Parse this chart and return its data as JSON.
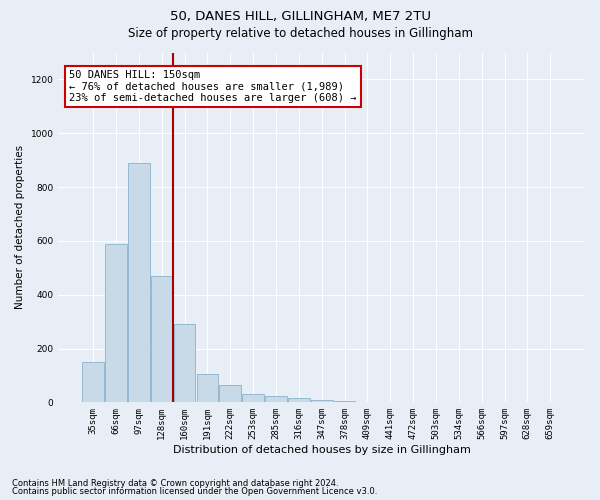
{
  "title1": "50, DANES HILL, GILLINGHAM, ME7 2TU",
  "title2": "Size of property relative to detached houses in Gillingham",
  "xlabel": "Distribution of detached houses by size in Gillingham",
  "ylabel": "Number of detached properties",
  "categories": [
    "35sqm",
    "66sqm",
    "97sqm",
    "128sqm",
    "160sqm",
    "191sqm",
    "222sqm",
    "253sqm",
    "285sqm",
    "316sqm",
    "347sqm",
    "378sqm",
    "409sqm",
    "441sqm",
    "472sqm",
    "503sqm",
    "534sqm",
    "566sqm",
    "597sqm",
    "628sqm",
    "659sqm"
  ],
  "values": [
    150,
    590,
    890,
    470,
    290,
    105,
    65,
    30,
    25,
    15,
    10,
    5,
    0,
    0,
    0,
    0,
    0,
    0,
    0,
    0,
    0
  ],
  "bar_color": "#c8d9e8",
  "bar_edge_color": "#8ab4cc",
  "vline_x": 3.5,
  "vline_color": "#aa0000",
  "annotation_text": "50 DANES HILL: 150sqm\n← 76% of detached houses are smaller (1,989)\n23% of semi-detached houses are larger (608) →",
  "annotation_box_color": "#ffffff",
  "annotation_box_edge_color": "#cc0000",
  "ylim": [
    0,
    1300
  ],
  "yticks": [
    0,
    200,
    400,
    600,
    800,
    1000,
    1200
  ],
  "bg_color": "#e8eef5",
  "plot_bg_color": "#e8eef5",
  "grid_color": "#ffffff",
  "footer1": "Contains HM Land Registry data © Crown copyright and database right 2024.",
  "footer2": "Contains public sector information licensed under the Open Government Licence v3.0.",
  "title1_fontsize": 9.5,
  "title2_fontsize": 8.5,
  "xlabel_fontsize": 8,
  "ylabel_fontsize": 7.5,
  "tick_fontsize": 6.5,
  "footer_fontsize": 6,
  "annotation_fontsize": 7.5
}
